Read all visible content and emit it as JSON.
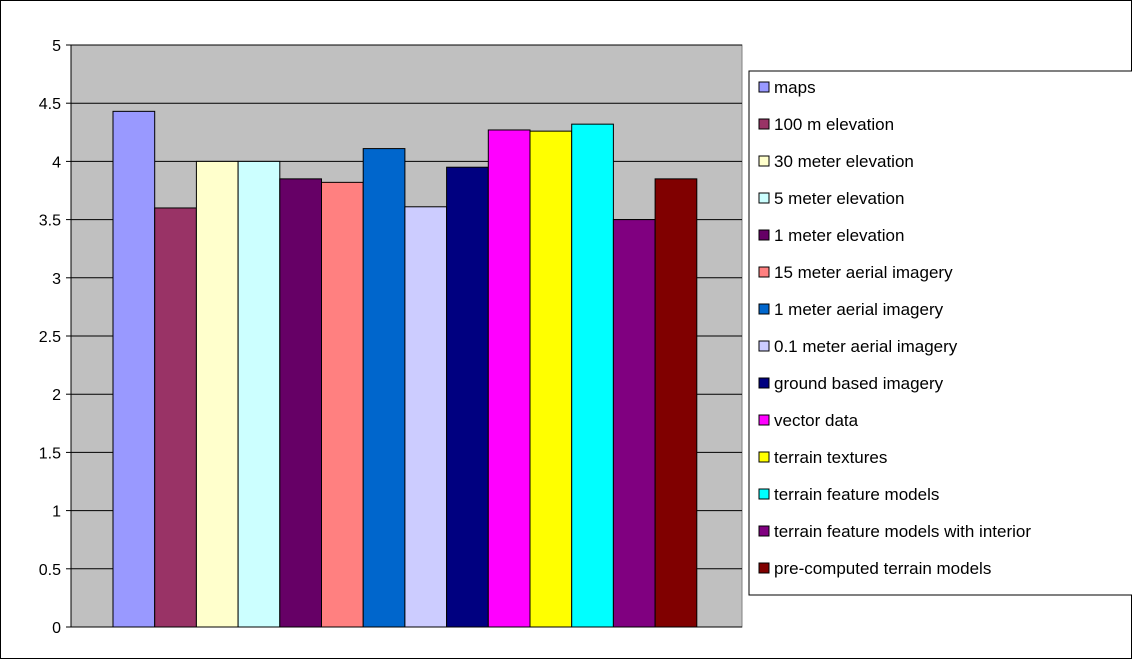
{
  "chart_data": {
    "type": "bar",
    "categories": [
      ""
    ],
    "series": [
      {
        "name": "maps",
        "values": [
          4.43
        ],
        "color": "#9999FF"
      },
      {
        "name": "100 m elevation",
        "values": [
          3.6
        ],
        "color": "#993366"
      },
      {
        "name": "30 meter elevation",
        "values": [
          4.0
        ],
        "color": "#FFFFCC"
      },
      {
        "name": "5 meter elevation",
        "values": [
          4.0
        ],
        "color": "#CCFFFF"
      },
      {
        "name": "1 meter elevation",
        "values": [
          3.85
        ],
        "color": "#660066"
      },
      {
        "name": "15 meter aerial imagery",
        "values": [
          3.82
        ],
        "color": "#FF8080"
      },
      {
        "name": "1 meter aerial imagery",
        "values": [
          4.11
        ],
        "color": "#0066CC"
      },
      {
        "name": "0.1 meter aerial imagery",
        "values": [
          3.61
        ],
        "color": "#CCCCFF"
      },
      {
        "name": "ground based imagery",
        "values": [
          3.95
        ],
        "color": "#000080"
      },
      {
        "name": "vector data",
        "values": [
          4.27
        ],
        "color": "#FF00FF"
      },
      {
        "name": "terrain textures",
        "values": [
          4.26
        ],
        "color": "#FFFF00"
      },
      {
        "name": "terrain feature models",
        "values": [
          4.32
        ],
        "color": "#00FFFF"
      },
      {
        "name": "terrain feature models with interior",
        "values": [
          3.5
        ],
        "color": "#800080"
      },
      {
        "name": "pre-computed terrain models",
        "values": [
          3.85
        ],
        "color": "#800000"
      }
    ],
    "y_ticks": [
      "0",
      "0.5",
      "1",
      "1.5",
      "2",
      "2.5",
      "3",
      "3.5",
      "4",
      "4.5",
      "5"
    ],
    "ylim": [
      0,
      5
    ],
    "grid": true,
    "legend": "right",
    "plot_background": "#C0C0C0"
  }
}
